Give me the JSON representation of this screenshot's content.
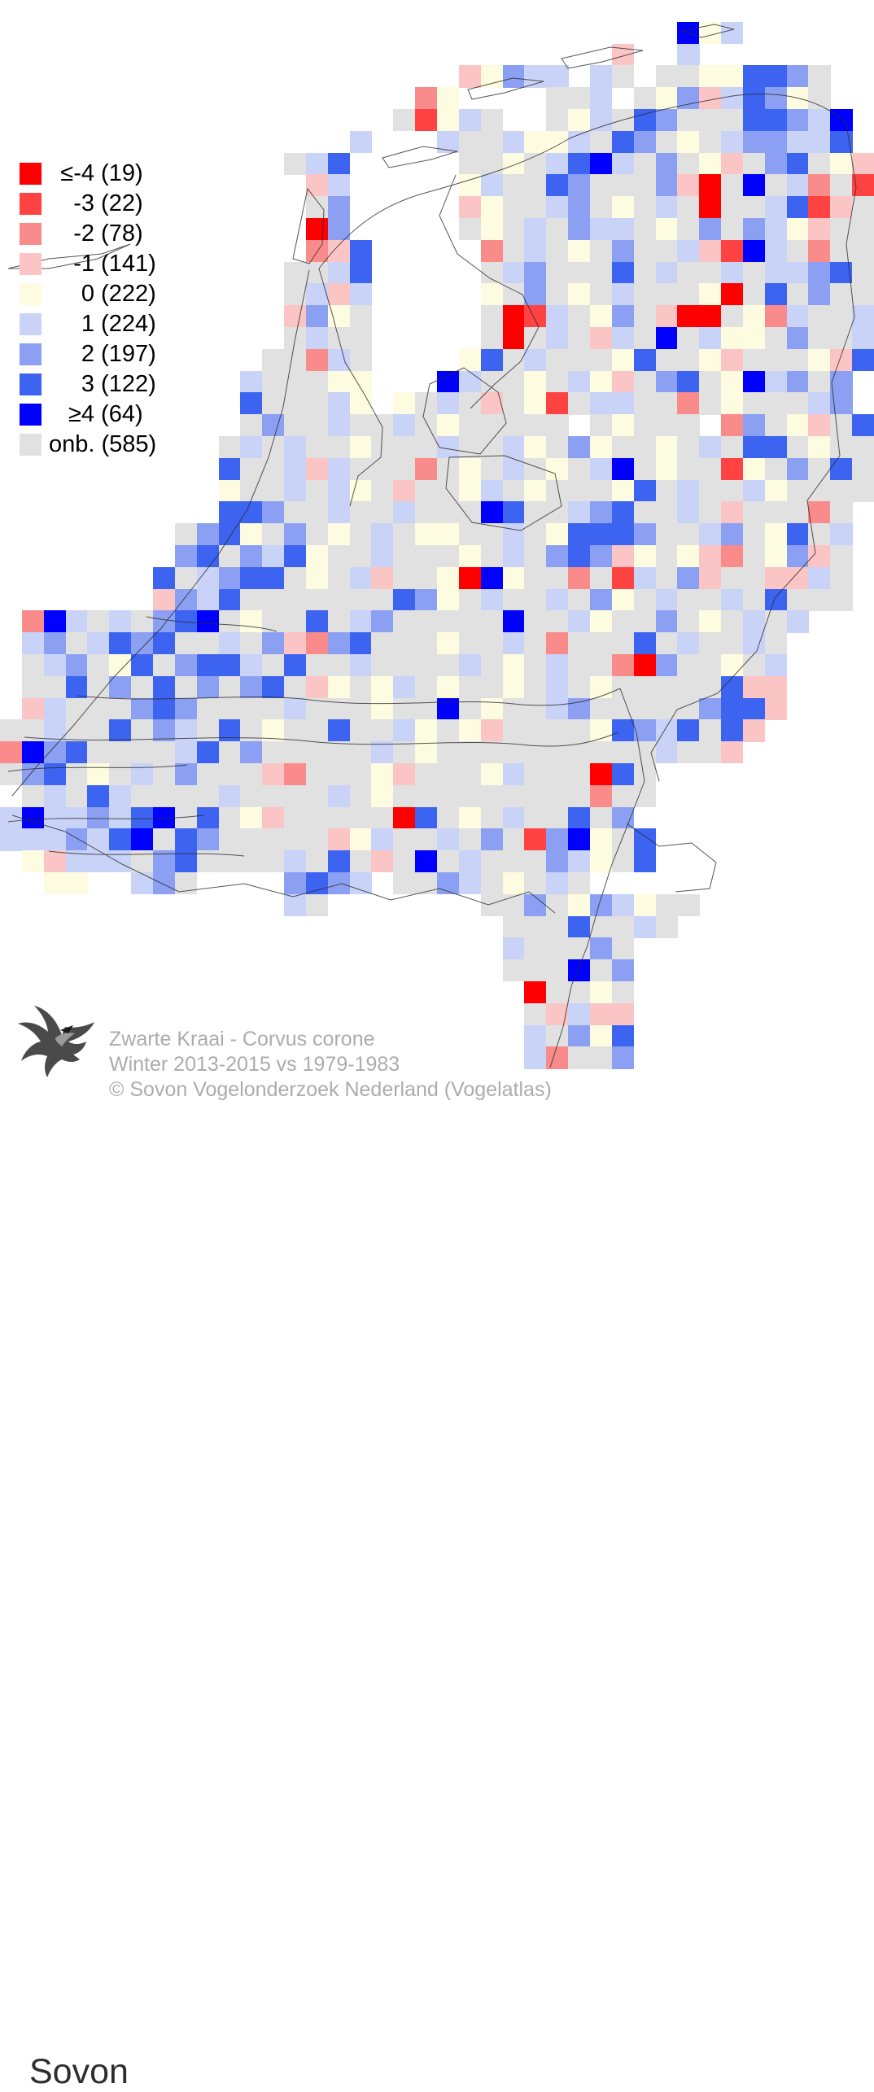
{
  "legend": {
    "items": [
      {
        "value": "≤-4",
        "count": 19,
        "code": "R"
      },
      {
        "value": "-3",
        "count": 22,
        "code": "r"
      },
      {
        "value": "-2",
        "count": 78,
        "code": "p"
      },
      {
        "value": "-1",
        "count": 141,
        "code": "q"
      },
      {
        "value": "0",
        "count": 222,
        "code": "y"
      },
      {
        "value": "1",
        "count": 224,
        "code": "l"
      },
      {
        "value": "2",
        "count": 197,
        "code": "m"
      },
      {
        "value": "3",
        "count": 122,
        "code": "b"
      },
      {
        "value": "≥4",
        "count": 64,
        "code": "B"
      },
      {
        "value": "onb.",
        "count": 585,
        "code": "g"
      }
    ]
  },
  "map": {
    "palette": {
      "R": "#FF0000",
      "r": "#FF4242",
      "p": "#F98B8B",
      "q": "#FBC5C5",
      "y": "#FEFCE0",
      "l": "#C9D2F7",
      "m": "#8BA0F2",
      "b": "#3D63F1",
      "B": "#0000FF",
      "g": "#E1E1E1"
    },
    "rows": [
      "........................................",
      "...............................Byl......",
      "............................q..l........",
      ".....................qymll.lg.ggyybbmg..",
      "...................py....ggl.gymqlbmyg..",
      "..................grylg..gylgbmgggbbmlB.",
      "................l...lgglyylgbmgyglmmllb.",
      ".............glb.....ggyglbBlgmgyqgmbgyq",
      "..............ql.....ylggbmgggmqRgBglpgr",
      "..............gm.....qygglmgyglgRgglbrqg",
      "..............Rm.....gyglgmllgygmgmlyqgg",
      "..............pqb.....pglgygmgglqrBlgpgg",
      ".............gglb.....glmgggbglgglgllmbg",
      ".............glql.....ygmgyglgggyRgbgmgg",
      ".............qmyg.....gRrlgymgqRRgyplggl",
      ".............glgg.....gRglgqlgBglyygmggl",
      "............ggplg....ybglgggybggyqgggyqb",
      "...........lgggyy...BlggyglyqgmbgyBlmgm.",
      "...........bgggly.yglgqgyrgllggpgyggglm.",
      "...........gmgglgglgygggggtgygggtpmgyqgb",
      "..........glglggyggglgglygmyggyglgbbgygg",
      "..........bgglqlgggpgyglgyglBgyggrygmgbg",
      "..........ygglglygqggylgygggybglgglygggg",
      "..........bbmgglgglgggBbgglmbgglgqgggpg.",
      "........gmbygmgyglgyygglgybbbmgglmgybgl.",
      "........mbgmlbygglgggyglgmbmqygyqpgymqg.",
      ".......bglmbbgyglqggyRByggpgrlgmqggqqlg.",
      ".......qmlbgggggggbmyglgglgmyglgglgbggg.",
      ".pBlglgmbBgyggbglmgggggBgglyggmgyglgl...",
      ".lmglbmbgglgmqpmbgggygglgpgggbglgglg....",
      ".glmgybgmbblgbgglgggglgyglggpRmggygl....",
      ".ggbgmgbgmgmbgqygylgyggyglgygggggbqq....",
      ".qlgggmbmgggglgggyggBgygglmgggggmbbq....",
      "gglggbgmlgbgyggbgglygyqggggybmlbgbq.....",
      "pBmbgggglbgmggggglgygggggggggglggq......",
      "gmbgyglgmgggqpgggyqgggylgggRbg..........",
      ".glgblgggglgggglgygggggggggpgg..........",
      "lBllmlbBgbgyqgggggRbgyglggbgm...........",
      "lllmlbBgbmgggggqylgglgmgrmBygb..........",
      ".yqlllgmbgggglgbgqgBglgggmlygb..........",
      "..yy..lmg....mbml.ggmlgyglg.............",
      ".............lg.......ggmgymlygg........",
      ".......................gggbgglg.........",
      ".......................lgggmg...........",
      ".......................gggBgm...........",
      "........................Rggyg...........",
      "........................gqlqq...........",
      "........................lgmyb...........",
      "........................lpggm...........",
      "........................................"
    ]
  },
  "footer": {
    "species": "Zwarte Kraai - Corvus corone",
    "period": "Winter 2013-2015 vs 1979-1983",
    "copyright": "© Sovon Vogelonderzoek Nederland (Vogelatlas)",
    "logo_text": "Sovon"
  }
}
